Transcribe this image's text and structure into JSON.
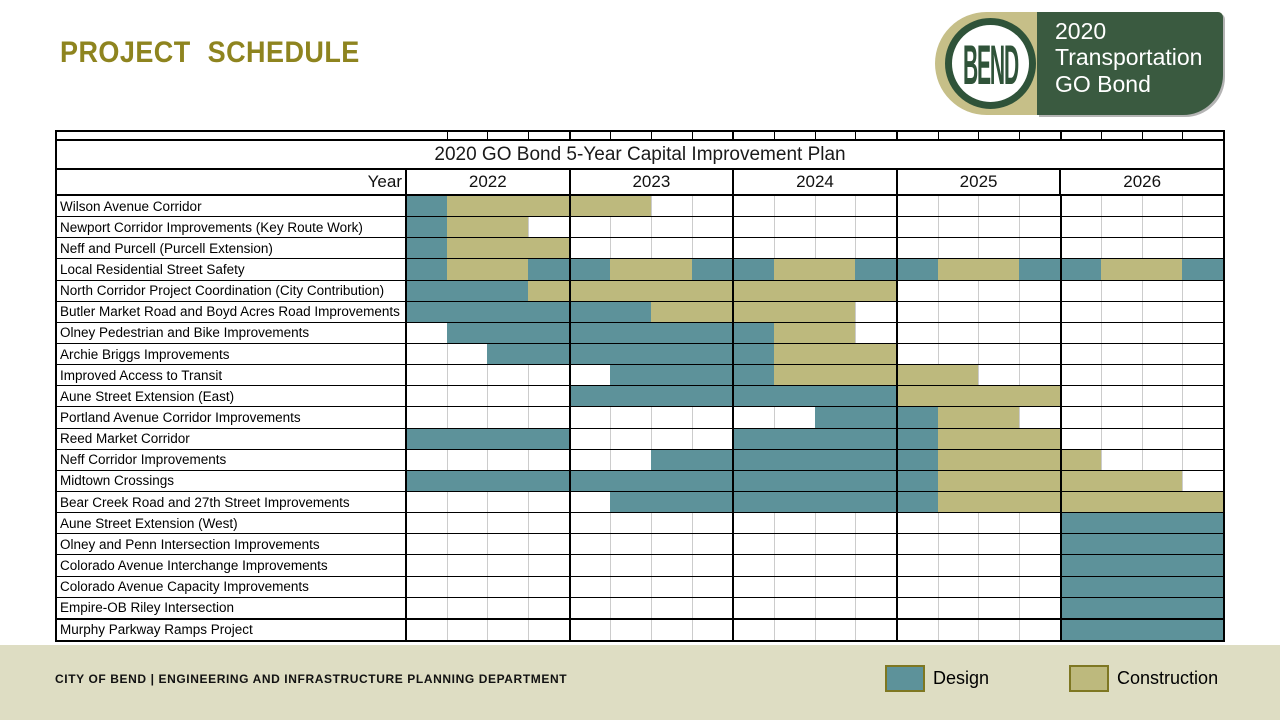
{
  "page": {
    "title": "PROJECT SCHEDULE",
    "footer": "CITY OF BEND | ENGINEERING AND INFRASTRUCTURE PLANNING DEPARTMENT"
  },
  "logo": {
    "badge_text": "BEND",
    "line1": "2020",
    "line2": "Transportation",
    "line3": "GO Bond"
  },
  "legend": {
    "design_label": "Design",
    "construction_label": "Construction"
  },
  "colors": {
    "design": "#5d929a",
    "construction": "#bdb97d",
    "gold": "#8e841f",
    "green": "#3a5a40",
    "green_dark": "#2f5339",
    "tan": "#c6bf88",
    "band": "#deddc3",
    "gridline": "#cccccc"
  },
  "chart_data": {
    "type": "gantt",
    "title": "2020 GO Bond 5-Year Capital Improvement Plan",
    "year_header_label": "Year",
    "years": [
      "2022",
      "2023",
      "2024",
      "2025",
      "2026"
    ],
    "quarters_per_year": 4,
    "total_quarters": 20,
    "segment_types": {
      "D": "Design",
      "C": "Construction"
    },
    "legend_position": "bottom-right",
    "rows": [
      {
        "name": "Wilson Avenue Corridor",
        "segments": [
          [
            "D",
            0,
            1
          ],
          [
            "C",
            1,
            5
          ]
        ]
      },
      {
        "name": "Newport Corridor Improvements (Key Route Work)",
        "segments": [
          [
            "D",
            0,
            1
          ],
          [
            "C",
            1,
            2
          ]
        ]
      },
      {
        "name": "Neff and Purcell (Purcell Extension)",
        "segments": [
          [
            "D",
            0,
            1
          ],
          [
            "C",
            1,
            3
          ]
        ]
      },
      {
        "name": "Local Residential Street Safety",
        "segments": [
          [
            "D",
            0,
            1
          ],
          [
            "C",
            1,
            2
          ],
          [
            "D",
            3,
            2
          ],
          [
            "C",
            5,
            2
          ],
          [
            "D",
            7,
            2
          ],
          [
            "C",
            9,
            2
          ],
          [
            "D",
            11,
            2
          ],
          [
            "C",
            13,
            2
          ],
          [
            "D",
            15,
            2
          ],
          [
            "C",
            17,
            2
          ],
          [
            "D",
            19,
            1
          ]
        ]
      },
      {
        "name": "North Corridor Project Coordination (City Contribution)",
        "segments": [
          [
            "D",
            0,
            3
          ],
          [
            "C",
            3,
            9
          ]
        ]
      },
      {
        "name": "Butler Market Road and Boyd Acres Road Improvements",
        "segments": [
          [
            "D",
            0,
            6
          ],
          [
            "C",
            6,
            5
          ]
        ]
      },
      {
        "name": "Olney Pedestrian and Bike Improvements",
        "segments": [
          [
            "D",
            1,
            8
          ],
          [
            "C",
            9,
            2
          ]
        ]
      },
      {
        "name": "Archie Briggs Improvements",
        "segments": [
          [
            "D",
            2,
            7
          ],
          [
            "C",
            9,
            3
          ]
        ]
      },
      {
        "name": "Improved Access to Transit",
        "segments": [
          [
            "D",
            5,
            4
          ],
          [
            "C",
            9,
            5
          ]
        ]
      },
      {
        "name": "Aune Street Extension (East)",
        "segments": [
          [
            "D",
            4,
            8
          ],
          [
            "C",
            12,
            4
          ]
        ]
      },
      {
        "name": "Portland Avenue Corridor Improvements",
        "segments": [
          [
            "D",
            10,
            3
          ],
          [
            "C",
            13,
            2
          ]
        ]
      },
      {
        "name": "Reed Market Corridor",
        "segments": [
          [
            "D",
            0,
            4
          ],
          [
            "D",
            8,
            5
          ],
          [
            "C",
            13,
            3
          ]
        ]
      },
      {
        "name": "Neff Corridor Improvements",
        "segments": [
          [
            "D",
            6,
            7
          ],
          [
            "C",
            13,
            4
          ]
        ]
      },
      {
        "name": "Midtown Crossings",
        "segments": [
          [
            "D",
            0,
            13
          ],
          [
            "C",
            13,
            6
          ]
        ]
      },
      {
        "name": "Bear Creek Road and 27th Street Improvements",
        "segments": [
          [
            "D",
            5,
            8
          ],
          [
            "C",
            13,
            7
          ]
        ]
      },
      {
        "name": "Aune Street Extension (West)",
        "segments": [
          [
            "D",
            16,
            4
          ]
        ]
      },
      {
        "name": "Olney and Penn Intersection Improvements",
        "segments": [
          [
            "D",
            16,
            4
          ]
        ]
      },
      {
        "name": "Colorado Avenue Interchange Improvements",
        "segments": [
          [
            "D",
            16,
            4
          ]
        ]
      },
      {
        "name": "Colorado Avenue Capacity Improvements",
        "segments": [
          [
            "D",
            16,
            4
          ]
        ]
      },
      {
        "name": "Empire-OB Riley Intersection",
        "segments": [
          [
            "D",
            16,
            4
          ]
        ]
      },
      {
        "name": "Murphy Parkway Ramps Project",
        "segments": [
          [
            "D",
            16,
            4
          ]
        ]
      }
    ]
  }
}
